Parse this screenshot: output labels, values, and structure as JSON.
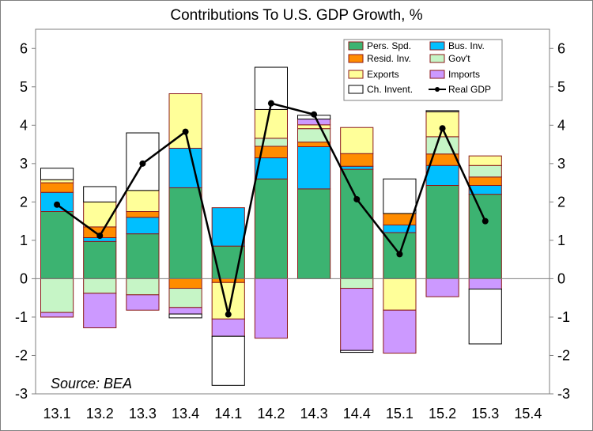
{
  "chart_data": {
    "type": "bar",
    "stacked": true,
    "title": "Contributions To U.S. GDP Growth, %",
    "source": "Source: BEA",
    "categories": [
      "13.1",
      "13.2",
      "13.3",
      "13.4",
      "14.1",
      "14.2",
      "14.3",
      "14.4",
      "15.1",
      "15.2",
      "15.3",
      "15.4"
    ],
    "ylim": [
      -3,
      6.5
    ],
    "yticks": [
      -3,
      -2,
      -1,
      0,
      1,
      2,
      3,
      4,
      5,
      6
    ],
    "grid": false,
    "legend_position": "top-right",
    "series": [
      {
        "name": "Pers. Spd.",
        "color": "#3cb371",
        "values": [
          1.75,
          0.97,
          1.17,
          2.37,
          0.85,
          2.6,
          2.34,
          2.85,
          1.2,
          2.43,
          2.2,
          null
        ]
      },
      {
        "name": "Bus. Inv.",
        "color": "#00bfff",
        "values": [
          0.5,
          0.1,
          0.43,
          1.03,
          1.0,
          0.55,
          1.1,
          0.08,
          0.2,
          0.52,
          0.23,
          null
        ]
      },
      {
        "name": "Resid. Inv.",
        "color": "#ff8c00",
        "values": [
          0.25,
          0.28,
          0.15,
          -0.25,
          -0.1,
          0.3,
          0.12,
          0.33,
          0.3,
          0.3,
          0.22,
          null
        ]
      },
      {
        "name": "Gov't",
        "color": "#c6f5c6",
        "values": [
          -0.88,
          -0.38,
          -0.42,
          -0.5,
          0.0,
          0.21,
          0.35,
          -0.25,
          0.0,
          0.45,
          0.3,
          null
        ]
      },
      {
        "name": "Exports",
        "color": "#ffff99",
        "values": [
          0.08,
          0.65,
          0.55,
          1.42,
          -0.95,
          0.75,
          0.1,
          0.68,
          -0.82,
          0.65,
          0.25,
          null
        ]
      },
      {
        "name": "Imports",
        "color": "#cc99ff",
        "values": [
          -0.12,
          -0.9,
          -0.4,
          -0.17,
          -0.45,
          -1.55,
          0.15,
          -1.62,
          -1.12,
          -0.47,
          -0.27,
          null
        ]
      },
      {
        "name": "Ch. Invent.",
        "color": "#ffffff",
        "values": [
          0.3,
          0.4,
          1.5,
          -0.1,
          -1.28,
          1.1,
          0.1,
          -0.05,
          0.9,
          0.03,
          -1.43,
          null
        ]
      }
    ],
    "line": {
      "name": "Real GDP",
      "color": "#000000",
      "values": [
        1.93,
        1.12,
        3.0,
        3.83,
        -0.93,
        4.57,
        4.28,
        2.07,
        0.64,
        3.92,
        1.5,
        null
      ]
    }
  }
}
